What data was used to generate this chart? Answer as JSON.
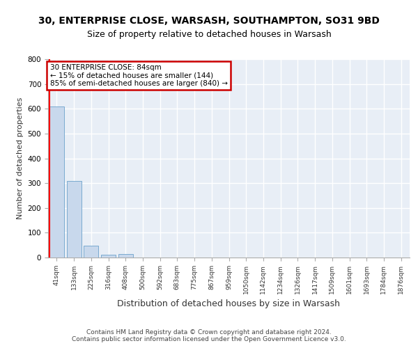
{
  "title1": "30, ENTERPRISE CLOSE, WARSASH, SOUTHAMPTON, SO31 9BD",
  "title2": "Size of property relative to detached houses in Warsash",
  "xlabel": "Distribution of detached houses by size in Warsash",
  "ylabel": "Number of detached properties",
  "categories": [
    "41sqm",
    "133sqm",
    "225sqm",
    "316sqm",
    "408sqm",
    "500sqm",
    "592sqm",
    "683sqm",
    "775sqm",
    "867sqm",
    "959sqm",
    "1050sqm",
    "1142sqm",
    "1234sqm",
    "1326sqm",
    "1417sqm",
    "1509sqm",
    "1601sqm",
    "1693sqm",
    "1784sqm",
    "1876sqm"
  ],
  "values": [
    610,
    310,
    48,
    10,
    13,
    0,
    0,
    0,
    1,
    0,
    0,
    0,
    0,
    0,
    0,
    0,
    0,
    0,
    0,
    0,
    0
  ],
  "bar_color": "#c8d8ec",
  "bar_edge_color": "#7aaad0",
  "annotation_text": "30 ENTERPRISE CLOSE: 84sqm\n← 15% of detached houses are smaller (144)\n85% of semi-detached houses are larger (840) →",
  "annotation_box_color": "#ffffff",
  "annotation_border_color": "#cc0000",
  "ylim": [
    0,
    800
  ],
  "yticks": [
    0,
    100,
    200,
    300,
    400,
    500,
    600,
    700,
    800
  ],
  "footer": "Contains HM Land Registry data © Crown copyright and database right 2024.\nContains public sector information licensed under the Open Government Licence v3.0.",
  "bg_color": "#ffffff",
  "plot_bg_color": "#e8eef6",
  "grid_color": "#ffffff",
  "title1_fontsize": 10,
  "title2_fontsize": 9,
  "footer_fontsize": 6.5
}
